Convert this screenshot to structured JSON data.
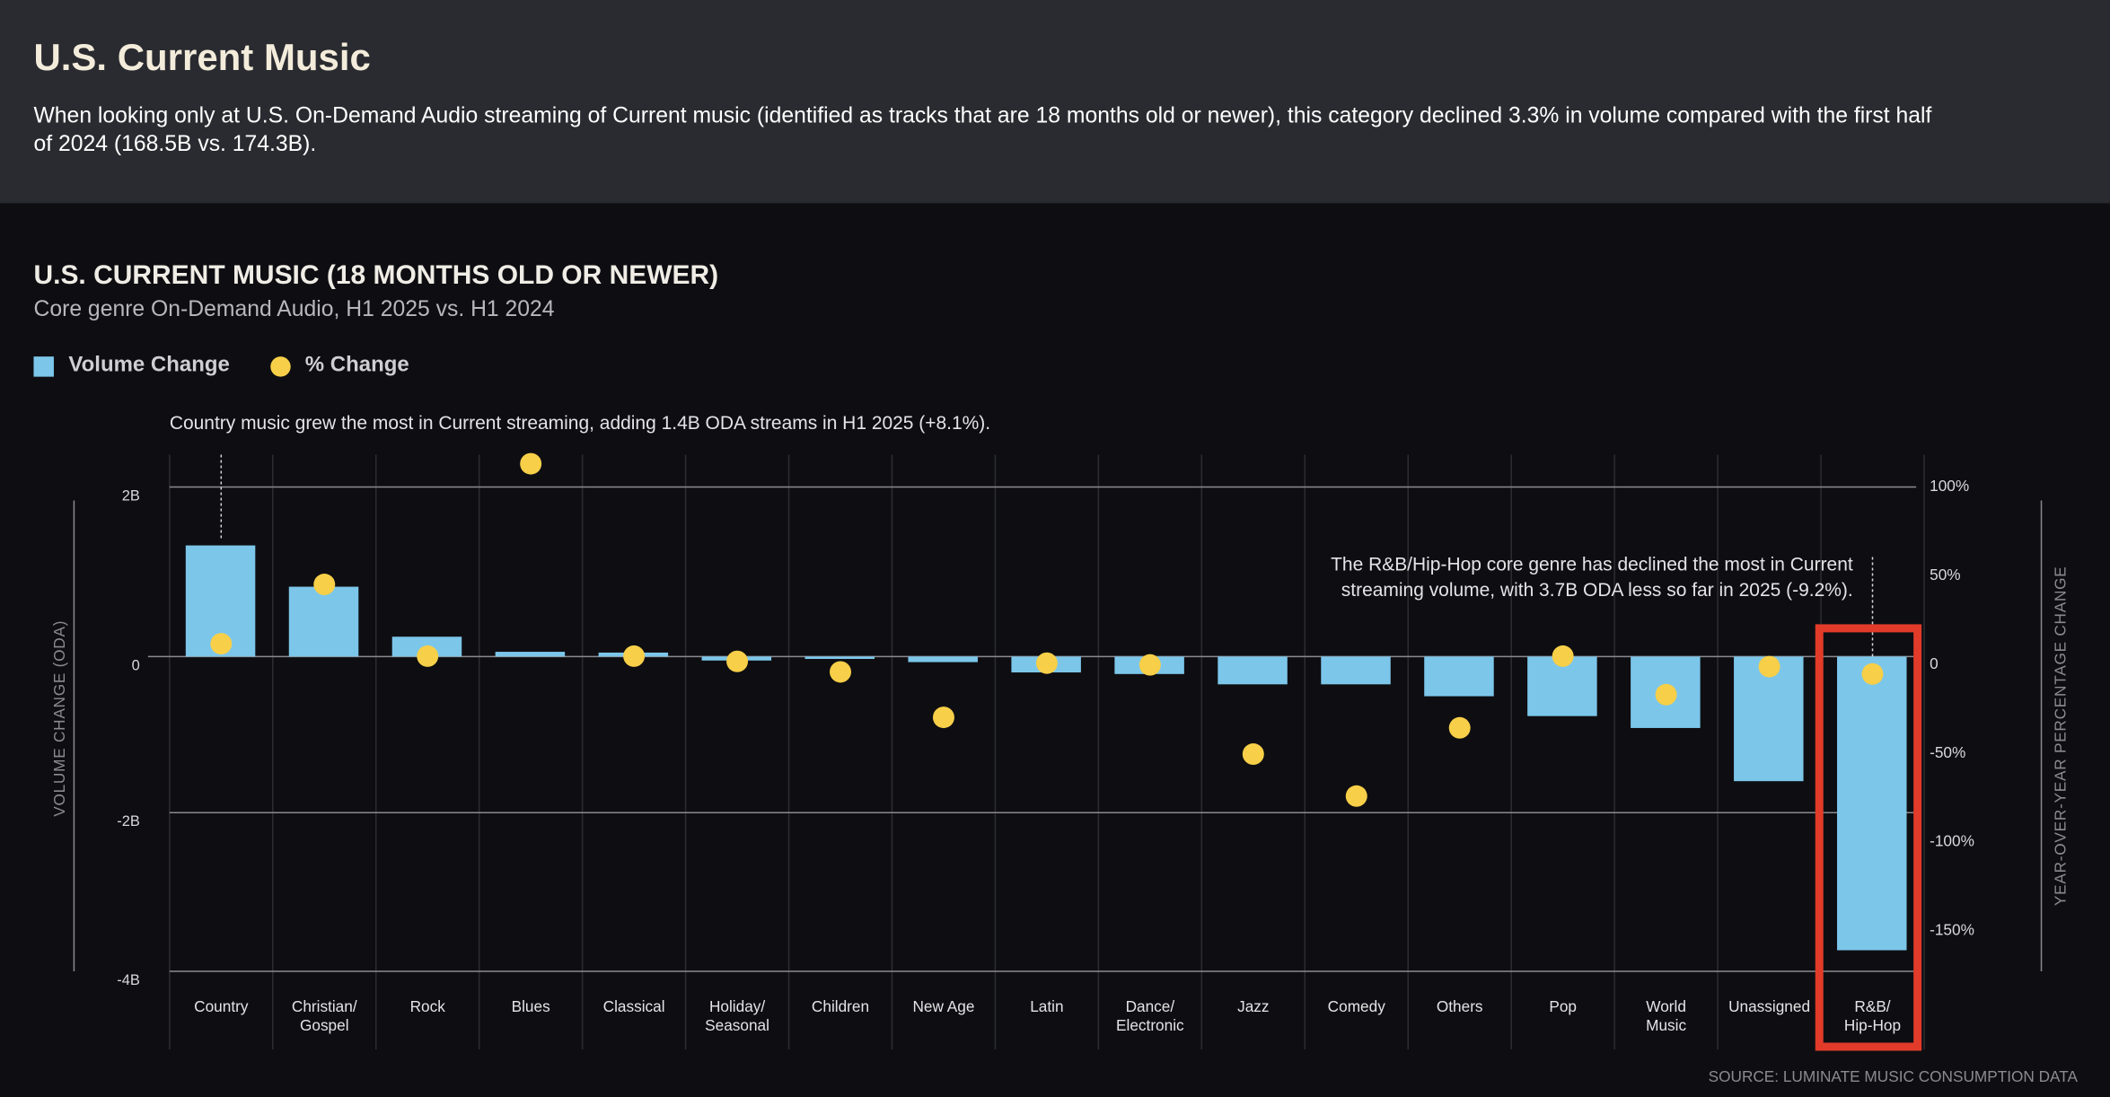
{
  "header": {
    "title": "U.S. Current Music",
    "description": "When looking only at U.S. On-Demand Audio streaming of Current music (identified as tracks that are 18 months old or newer), this category declined 3.3% in volume compared with the first half of 2024 (168.5B vs. 174.3B)."
  },
  "colors": {
    "bar": "#7cc6ea",
    "dot": "#f7cf48",
    "highlight": "#e23b2a"
  },
  "chart_data": {
    "type": "bar",
    "title": "U.S. CURRENT MUSIC (18 MONTHS OLD OR NEWER)",
    "subtitle": "Core genre On-Demand Audio, H1 2025 vs. H1 2024",
    "legend": [
      "Volume Change",
      "% Change"
    ],
    "legend_placement": "top-left",
    "ylabel": "VOLUME CHANGE (ODA)",
    "y2label": "YEAR-OVER-YEAR PERCENTAGE CHANGE",
    "yticks": [
      "2B",
      "0",
      "-2B",
      "-4B"
    ],
    "y2ticks": [
      "100%",
      "50%",
      "0",
      "-50%",
      "-100%",
      "-150%"
    ],
    "ylim": [
      -4,
      2
    ],
    "y2lim": [
      -175,
      100
    ],
    "categories": [
      "Country",
      "Christian/\nGospel",
      "Rock",
      "Blues",
      "Classical",
      "Holiday/\nSeasonal",
      "Children",
      "New Age",
      "Latin",
      "Dance/\nElectronic",
      "Jazz",
      "Comedy",
      "Others",
      "Pop",
      "World\nMusic",
      "Unassigned",
      "R&B/\nHip-Hop"
    ],
    "series": [
      {
        "name": "Volume Change",
        "kind": "bar",
        "unit": "B",
        "values": [
          1.4,
          0.88,
          0.25,
          0.06,
          0.05,
          -0.05,
          -0.03,
          -0.07,
          -0.2,
          -0.22,
          -0.35,
          -0.35,
          -0.5,
          -0.75,
          -0.9,
          -1.57,
          -3.7
        ]
      },
      {
        "name": "% Change",
        "kind": "dot",
        "unit": "%",
        "values": [
          8.1,
          42,
          1,
          111,
          1,
          -2,
          -8,
          -34,
          -3,
          -4,
          -55,
          -79,
          -40,
          1,
          -21,
          -5,
          -9.2
        ]
      }
    ],
    "highlighted_category": "R&B/\nHip-Hop",
    "annotations": [
      "Country music grew the most in Current streaming, adding 1.4B ODA streams in H1 2025 (+8.1%).",
      "The R&B/Hip-Hop core genre has declined the most in Current",
      "streaming volume, with 3.7B ODA less so far in 2025 (-9.2%)."
    ],
    "source": "SOURCE: LUMINATE MUSIC CONSUMPTION DATA",
    "grid": true
  }
}
